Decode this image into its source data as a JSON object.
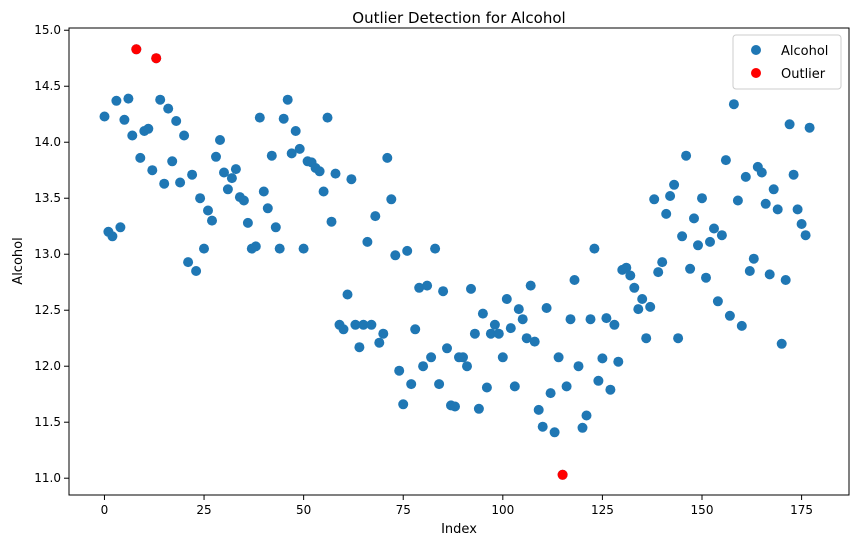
{
  "chart_data": {
    "type": "scatter",
    "title": "Outlier Detection for Alcohol",
    "xlabel": "Index",
    "ylabel": "Alcohol",
    "xlim": [
      -8.9,
      186.9
    ],
    "ylim": [
      10.85,
      15.02
    ],
    "xticks": [
      0,
      25,
      50,
      75,
      100,
      125,
      150,
      175
    ],
    "yticks": [
      11.0,
      11.5,
      12.0,
      12.5,
      13.0,
      13.5,
      14.0,
      14.5,
      15.0
    ],
    "xtick_labels": [
      "0",
      "25",
      "50",
      "75",
      "100",
      "125",
      "150",
      "175"
    ],
    "ytick_labels": [
      "11.0",
      "11.5",
      "12.0",
      "12.5",
      "13.0",
      "13.5",
      "14.0",
      "14.5",
      "15.0"
    ],
    "legend_position": "top-right",
    "grid": false,
    "series": [
      {
        "name": "Alcohol",
        "color": "#1f77b4",
        "x": [
          0,
          1,
          2,
          3,
          4,
          5,
          6,
          7,
          8,
          9,
          10,
          11,
          12,
          13,
          14,
          15,
          16,
          17,
          18,
          19,
          20,
          21,
          22,
          23,
          24,
          25,
          26,
          27,
          28,
          29,
          30,
          31,
          32,
          33,
          34,
          35,
          36,
          37,
          38,
          39,
          40,
          41,
          42,
          43,
          44,
          45,
          46,
          47,
          48,
          49,
          50,
          51,
          52,
          53,
          54,
          55,
          56,
          57,
          58,
          59,
          60,
          61,
          62,
          63,
          64,
          65,
          66,
          67,
          68,
          69,
          70,
          71,
          72,
          73,
          74,
          75,
          76,
          77,
          78,
          79,
          80,
          81,
          82,
          83,
          84,
          85,
          86,
          87,
          88,
          89,
          90,
          91,
          92,
          93,
          94,
          95,
          96,
          97,
          98,
          99,
          100,
          101,
          102,
          103,
          104,
          105,
          106,
          107,
          108,
          109,
          110,
          111,
          112,
          113,
          114,
          115,
          116,
          117,
          118,
          119,
          120,
          121,
          122,
          123,
          124,
          125,
          126,
          127,
          128,
          129,
          130,
          131,
          132,
          133,
          134,
          135,
          136,
          137,
          138,
          139,
          140,
          141,
          142,
          143,
          144,
          145,
          146,
          147,
          148,
          149,
          150,
          151,
          152,
          153,
          154,
          155,
          156,
          157,
          158,
          159,
          160,
          161,
          162,
          163,
          164,
          165,
          166,
          167,
          168,
          169,
          170,
          171,
          172,
          173,
          174,
          175,
          176,
          177
        ],
        "y": [
          14.23,
          13.2,
          13.16,
          14.37,
          13.24,
          14.2,
          14.39,
          14.06,
          14.83,
          13.86,
          14.1,
          14.12,
          13.75,
          14.75,
          14.38,
          13.63,
          14.3,
          13.83,
          14.19,
          13.64,
          14.06,
          12.93,
          13.71,
          12.85,
          13.5,
          13.05,
          13.39,
          13.3,
          13.87,
          14.02,
          13.73,
          13.58,
          13.68,
          13.76,
          13.51,
          13.48,
          13.28,
          13.05,
          13.07,
          14.22,
          13.56,
          13.41,
          13.88,
          13.24,
          13.05,
          14.21,
          14.38,
          13.9,
          14.1,
          13.94,
          13.05,
          13.83,
          13.82,
          13.77,
          13.74,
          13.56,
          14.22,
          13.29,
          13.72,
          12.37,
          12.33,
          12.64,
          13.67,
          12.37,
          12.17,
          12.37,
          13.11,
          12.37,
          13.34,
          12.21,
          12.29,
          13.86,
          13.49,
          12.99,
          11.96,
          11.66,
          13.03,
          11.84,
          12.33,
          12.7,
          12.0,
          12.72,
          12.08,
          13.05,
          11.84,
          12.67,
          12.16,
          11.65,
          11.64,
          12.08,
          12.08,
          12.0,
          12.69,
          12.29,
          11.62,
          12.47,
          11.81,
          12.29,
          12.37,
          12.29,
          12.08,
          12.6,
          12.34,
          11.82,
          12.51,
          12.42,
          12.25,
          12.72,
          12.22,
          11.61,
          11.46,
          12.52,
          11.76,
          11.41,
          12.08,
          11.03,
          11.82,
          12.42,
          12.77,
          12.0,
          11.45,
          11.56,
          12.42,
          13.05,
          11.87,
          12.07,
          12.43,
          11.79,
          12.37,
          12.04,
          12.86,
          12.88,
          12.81,
          12.7,
          12.51,
          12.6,
          12.25,
          12.53,
          13.49,
          12.84,
          12.93,
          13.36,
          13.52,
          13.62,
          12.25,
          13.16,
          13.88,
          12.87,
          13.32,
          13.08,
          13.5,
          12.79,
          13.11,
          13.23,
          12.58,
          13.17,
          13.84,
          12.45,
          14.34,
          13.48,
          12.36,
          13.69,
          12.85,
          12.96,
          13.78,
          13.73,
          13.45,
          12.82,
          13.58,
          13.4,
          12.2,
          12.77,
          14.16,
          13.71,
          13.4,
          13.27,
          13.17,
          14.13
        ]
      },
      {
        "name": "Outlier",
        "color": "#ff0000",
        "x": [
          8,
          13,
          115
        ],
        "y": [
          14.83,
          14.75,
          11.03
        ]
      }
    ]
  }
}
